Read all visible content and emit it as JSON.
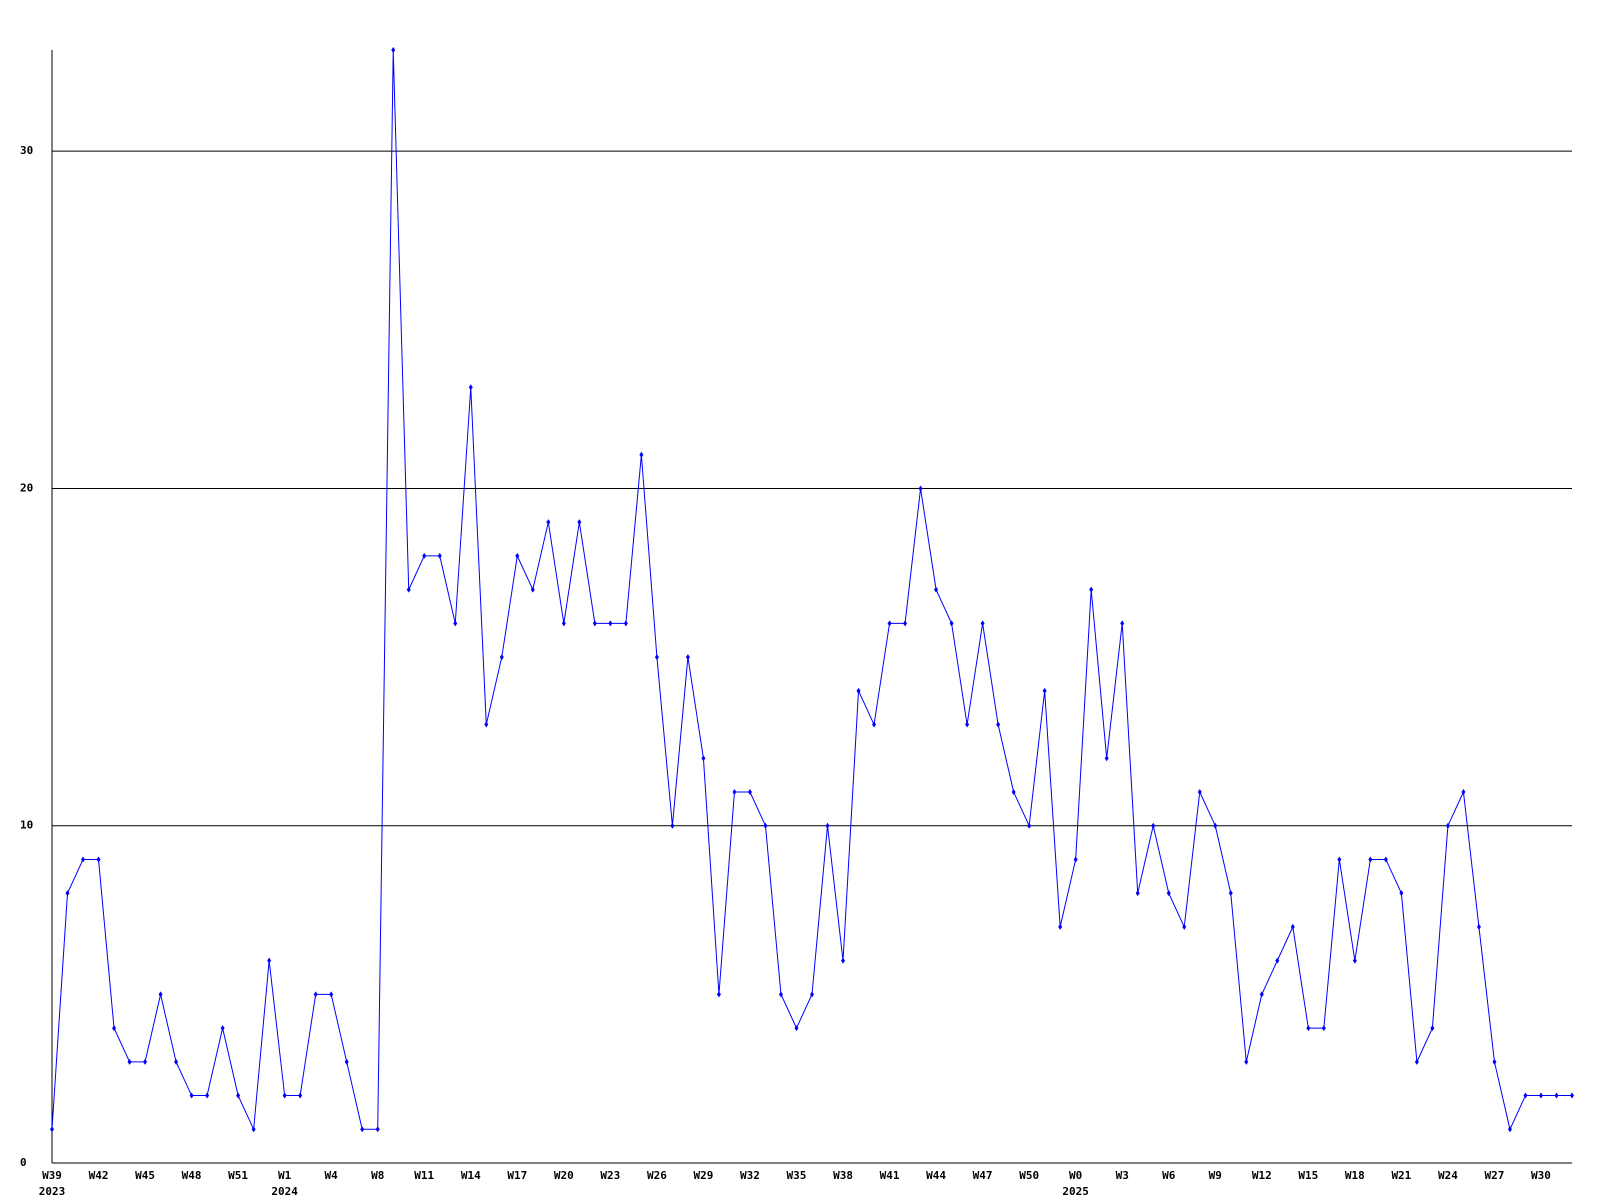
{
  "chart_data": {
    "type": "line",
    "categories": [
      "W39",
      null,
      null,
      "W42",
      null,
      null,
      "W45",
      null,
      null,
      "W48",
      null,
      null,
      "W51",
      null,
      null,
      "W1",
      null,
      null,
      "W4",
      null,
      null,
      "W8",
      null,
      null,
      "W11",
      null,
      null,
      "W14",
      null,
      null,
      "W17",
      null,
      null,
      "W20",
      null,
      null,
      "W23",
      null,
      null,
      "W26",
      null,
      null,
      "W29",
      null,
      null,
      "W32",
      null,
      null,
      "W35",
      null,
      null,
      "W38",
      null,
      null,
      "W41",
      null,
      null,
      "W44",
      null,
      null,
      "W47",
      null,
      null,
      "W50",
      null,
      null,
      "W0",
      null,
      null,
      "W3",
      null,
      null,
      "W6",
      null,
      null,
      "W9",
      null,
      null,
      "W12",
      null,
      null,
      "W15",
      null,
      null,
      "W18",
      null,
      null,
      "W21",
      null,
      null,
      "W24",
      null,
      null,
      "W27",
      null,
      null,
      "W30",
      null,
      null
    ],
    "category_years": [
      "2023",
      null,
      null,
      null,
      null,
      null,
      null,
      null,
      null,
      null,
      null,
      null,
      null,
      null,
      null,
      "2024",
      null,
      null,
      null,
      null,
      null,
      null,
      null,
      null,
      null,
      null,
      null,
      null,
      null,
      null,
      null,
      null,
      null,
      null,
      null,
      null,
      null,
      null,
      null,
      null,
      null,
      null,
      null,
      null,
      null,
      null,
      null,
      null,
      null,
      null,
      null,
      null,
      null,
      null,
      null,
      null,
      null,
      null,
      null,
      null,
      null,
      null,
      null,
      null,
      null,
      null,
      "2025",
      null,
      null,
      null,
      null,
      null,
      null,
      null,
      null,
      null,
      null,
      null,
      null,
      null,
      null,
      null,
      null,
      null,
      null,
      null,
      null,
      null,
      null,
      null,
      null,
      null,
      null,
      null,
      null,
      null,
      null,
      null,
      null
    ],
    "values": [
      1,
      8,
      9,
      9,
      4,
      3,
      3,
      5,
      3,
      2,
      2,
      4,
      2,
      1,
      6,
      2,
      2,
      5,
      5,
      3,
      1,
      1,
      33,
      17,
      18,
      18,
      16,
      23,
      13,
      15,
      18,
      17,
      19,
      16,
      19,
      16,
      16,
      16,
      21,
      15,
      10,
      15,
      12,
      5,
      11,
      11,
      10,
      5,
      4,
      5,
      10,
      6,
      14,
      13,
      16,
      16,
      20,
      17,
      16,
      13,
      16,
      13,
      11,
      10,
      14,
      7,
      9,
      17,
      12,
      16,
      8,
      10,
      8,
      7,
      11,
      10,
      8,
      3,
      5,
      6,
      7,
      4,
      4,
      9,
      6,
      9,
      9,
      8,
      3,
      4,
      10,
      11,
      7,
      3,
      1,
      2,
      2,
      2,
      2
    ],
    "color": "#0000ff",
    "ylim": [
      0,
      33
    ],
    "yticks": [
      0,
      10,
      20,
      30
    ],
    "grid": true
  }
}
